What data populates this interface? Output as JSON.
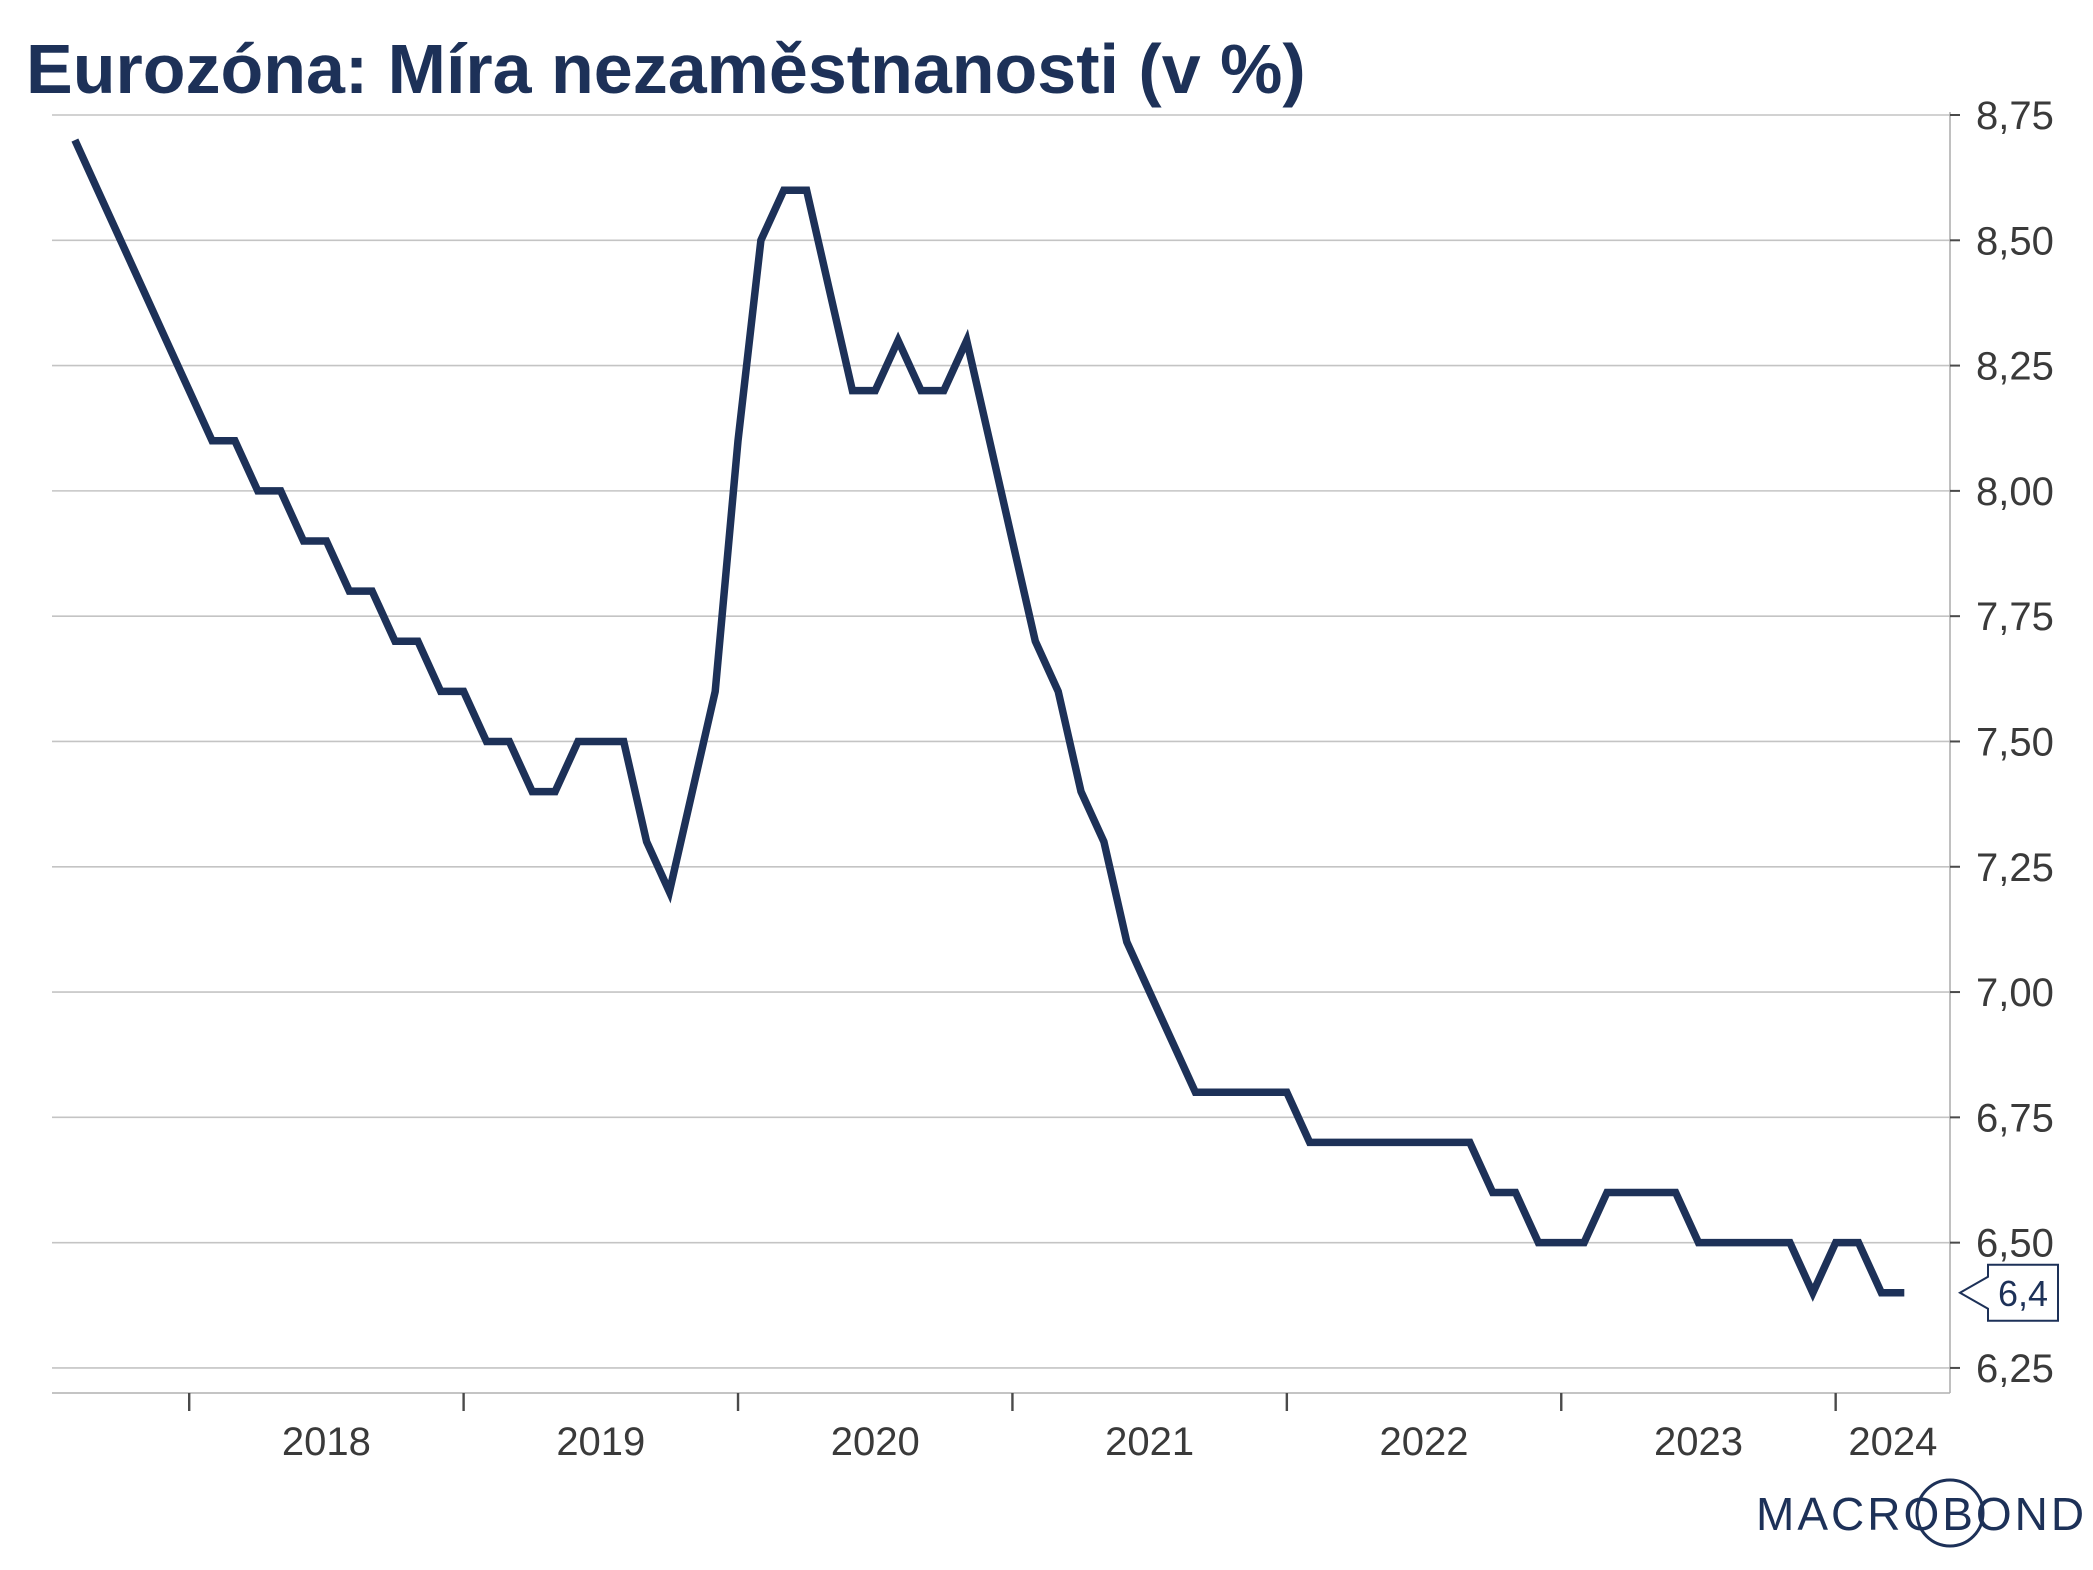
{
  "title": "Eurozóna: Míra nezaměstnanosti (v %)",
  "brand": "MACROBOND",
  "colors": {
    "line": "#1d3158",
    "grid": "#c4c4c4",
    "axis": "#4a4a4a",
    "title": "#1d3158"
  },
  "chart_data": {
    "type": "line",
    "title": "Eurozóna: Míra nezaměstnanosti (v %)",
    "xlabel": "",
    "ylabel": "",
    "x_range": [
      "2017-07",
      "2024-06"
    ],
    "x_ticks": [
      "2018",
      "2019",
      "2020",
      "2021",
      "2022",
      "2023",
      "2024"
    ],
    "ylim": [
      6.2,
      8.75
    ],
    "y_ticks": [
      "6,25",
      "6,50",
      "6,75",
      "7,00",
      "7,25",
      "7,50",
      "7,75",
      "8,00",
      "8,25",
      "8,50",
      "8,75"
    ],
    "y_axis_side": "right",
    "grid": true,
    "legend": "none",
    "end_label": "6,4",
    "series": [
      {
        "x": [
          "2017-08",
          "2017-09",
          "2017-10",
          "2017-11",
          "2017-12",
          "2018-01",
          "2018-02",
          "2018-03",
          "2018-04",
          "2018-05",
          "2018-06",
          "2018-07",
          "2018-08",
          "2018-09",
          "2018-10",
          "2018-11",
          "2018-12",
          "2019-01",
          "2019-02",
          "2019-03",
          "2019-04",
          "2019-05",
          "2019-06",
          "2019-07",
          "2019-08",
          "2019-09",
          "2019-10",
          "2019-11",
          "2019-12",
          "2020-01",
          "2020-02",
          "2020-03",
          "2020-04",
          "2020-05",
          "2020-06",
          "2020-07",
          "2020-08",
          "2020-09",
          "2020-10",
          "2020-11",
          "2020-12",
          "2021-01",
          "2021-02",
          "2021-03",
          "2021-04",
          "2021-05",
          "2021-06",
          "2021-07",
          "2021-08",
          "2021-09",
          "2021-10",
          "2021-11",
          "2021-12",
          "2022-01",
          "2022-02",
          "2022-03",
          "2022-04",
          "2022-05",
          "2022-06",
          "2022-07",
          "2022-08",
          "2022-09",
          "2022-10",
          "2022-11",
          "2022-12",
          "2023-01",
          "2023-02",
          "2023-03",
          "2023-04",
          "2023-05",
          "2023-06",
          "2023-07",
          "2023-08",
          "2023-09",
          "2023-10",
          "2023-11",
          "2023-12",
          "2024-01",
          "2024-02",
          "2024-03",
          "2024-04"
        ],
        "values": [
          8.7,
          8.6,
          8.5,
          8.4,
          8.3,
          8.2,
          8.1,
          8.1,
          8.0,
          8.0,
          7.9,
          7.9,
          7.8,
          7.8,
          7.7,
          7.7,
          7.6,
          7.6,
          7.5,
          7.5,
          7.4,
          7.4,
          7.5,
          7.5,
          7.5,
          7.3,
          7.2,
          7.4,
          7.6,
          8.1,
          8.5,
          8.6,
          8.6,
          8.4,
          8.2,
          8.2,
          8.3,
          8.2,
          8.2,
          8.3,
          8.1,
          7.9,
          7.7,
          7.6,
          7.4,
          7.3,
          7.1,
          7.0,
          6.9,
          6.8,
          6.8,
          6.8,
          6.8,
          6.8,
          6.7,
          6.7,
          6.7,
          6.7,
          6.7,
          6.7,
          6.7,
          6.7,
          6.6,
          6.6,
          6.5,
          6.5,
          6.5,
          6.6,
          6.6,
          6.6,
          6.6,
          6.5,
          6.5,
          6.5,
          6.5,
          6.5,
          6.4,
          6.5,
          6.5,
          6.4,
          6.4
        ]
      }
    ]
  }
}
